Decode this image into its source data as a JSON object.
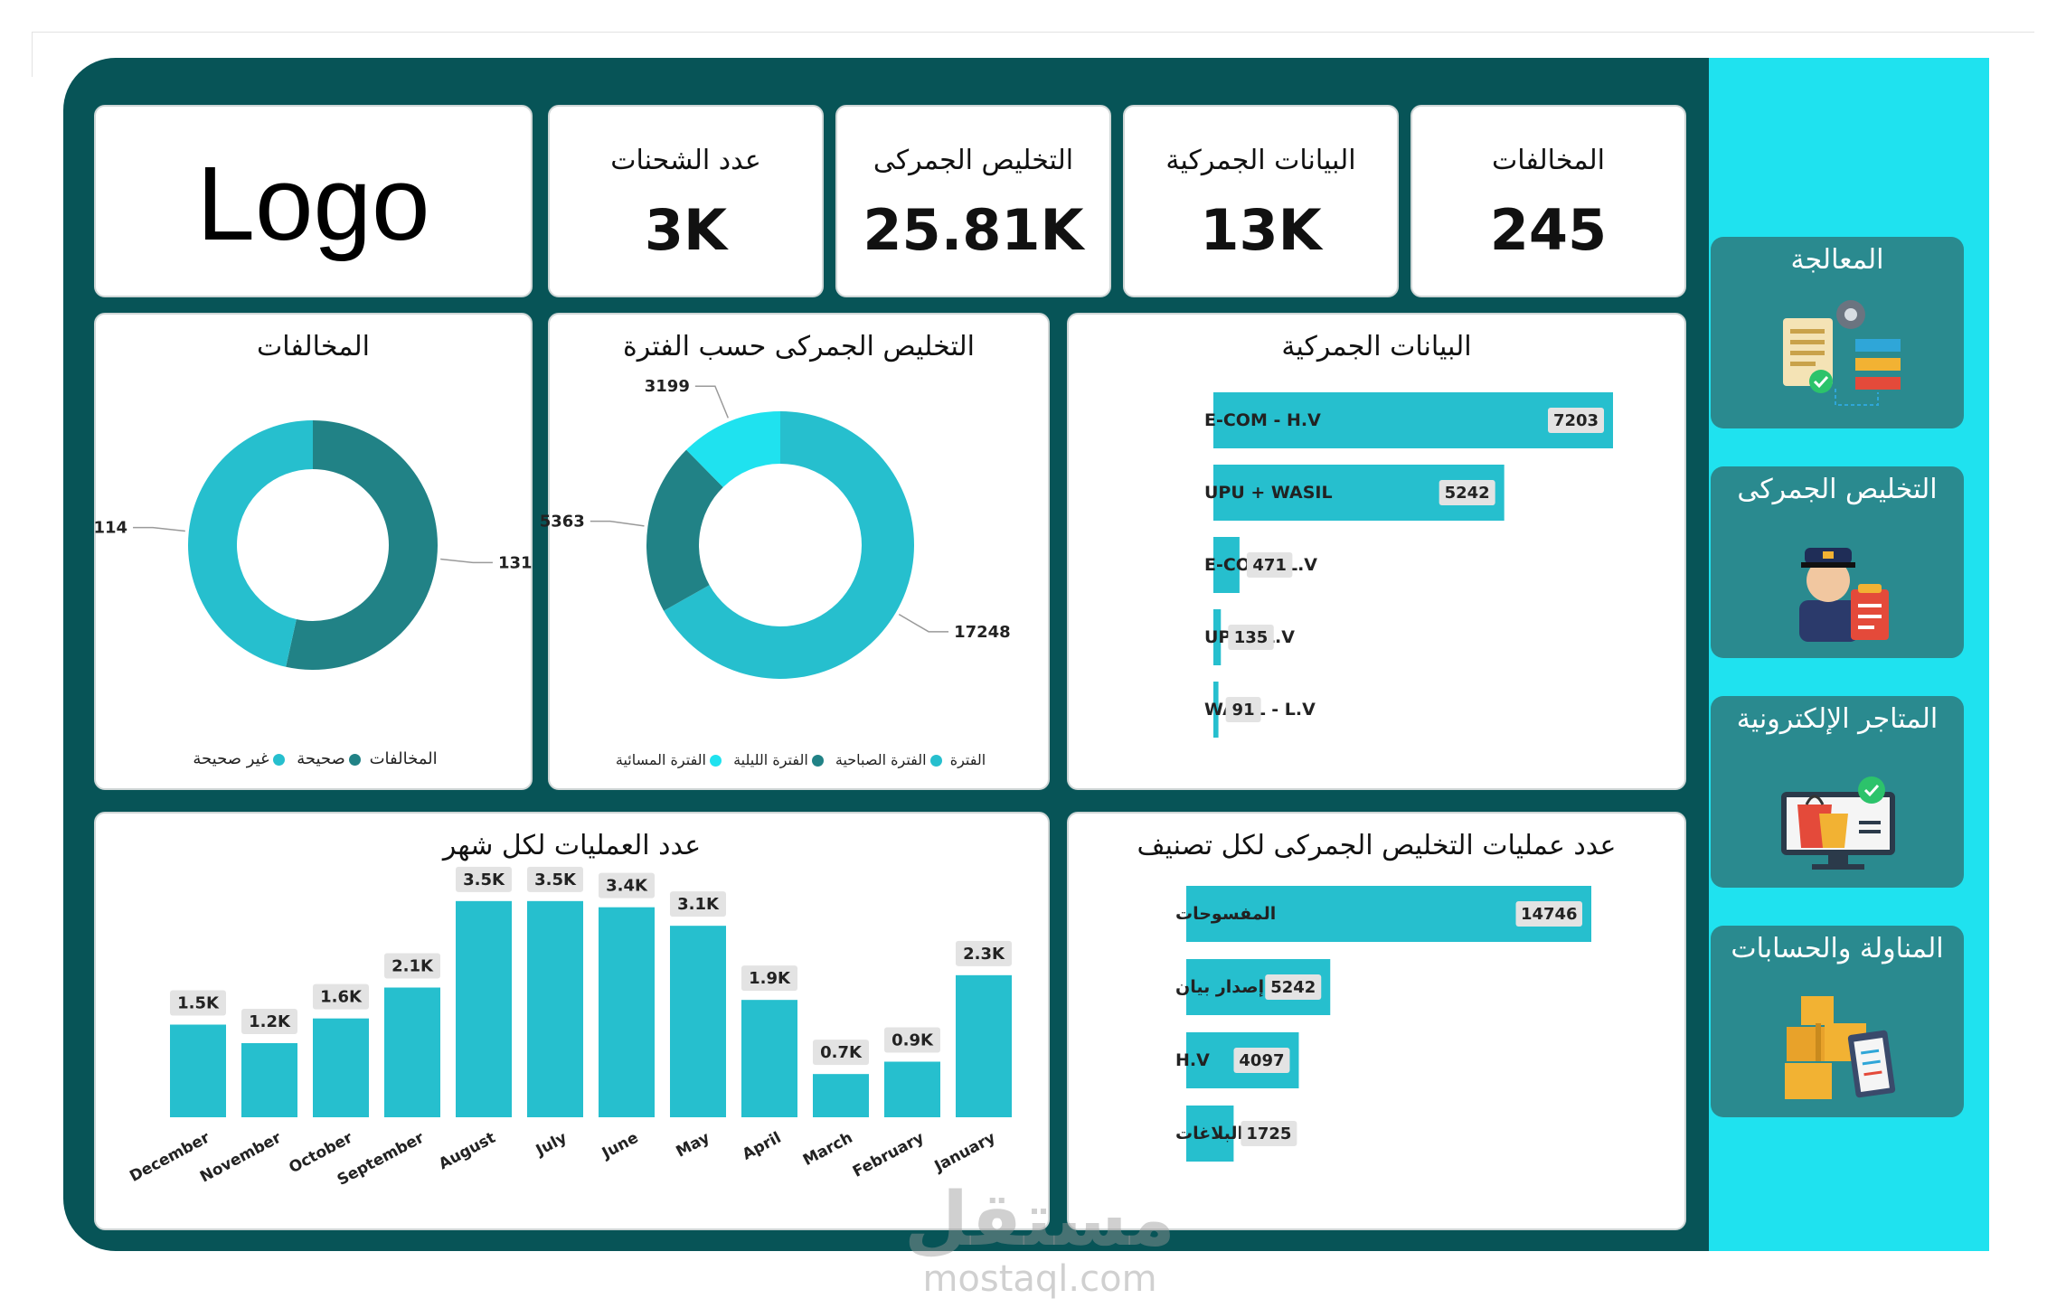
{
  "logo": "Logo",
  "kpis": [
    {
      "title": "المخالفات",
      "value": "245"
    },
    {
      "title": "البيانات الجمركية",
      "value": "13K"
    },
    {
      "title": "التخليص الجمركى",
      "value": "25.81K"
    },
    {
      "title": "عدد الشحنات",
      "value": "3K"
    }
  ],
  "sidebar": [
    {
      "label": "المعالجة",
      "icon": "processing-icon"
    },
    {
      "label": "التخليص الجمركى",
      "icon": "customs-officer-icon"
    },
    {
      "label": "المتاجر الإلكترونية",
      "icon": "e-store-icon"
    },
    {
      "label": "المناولة والحسابات",
      "icon": "boxes-checklist-icon"
    }
  ],
  "colors": {
    "dark": "#075457",
    "teal": "#26bfce",
    "darkTeal": "#218286",
    "cyan": "#1fe2ef",
    "label_bg": "#e3e3e3"
  },
  "watermark": {
    "ar": "مستقل",
    "en": "mostaql.com"
  },
  "chart_data": [
    {
      "id": "violations",
      "type": "pie",
      "variant": "donut",
      "title": "المخالفات",
      "legend_title": "المخالفات",
      "slices": [
        {
          "label": "صحيحة",
          "value": 131,
          "label_text": "131",
          "color": "#218286"
        },
        {
          "label": "غير صحيحة",
          "value": 114,
          "label_text": "114",
          "color": "#26bfce"
        }
      ]
    },
    {
      "id": "clearance-period",
      "type": "pie",
      "variant": "donut",
      "title": "التخليص الجمركى حسب الفترة",
      "legend_title": "الفترة",
      "slices": [
        {
          "label": "الفترة الصباحية",
          "value": 17248,
          "label_text": "17248",
          "color": "#26bfce"
        },
        {
          "label": "الفترة الليلية",
          "value": 5363,
          "label_text": "5363",
          "color": "#218286"
        },
        {
          "label": "الفترة المسائية",
          "value": 3199,
          "label_text": "3199",
          "color": "#1fe2ef"
        }
      ]
    },
    {
      "id": "customs-data",
      "type": "bar",
      "orientation": "horizontal",
      "title": "البيانات الجمركية",
      "categories": [
        "E-COM - H.V",
        "UPU + WASIL",
        "E-COM - L.V",
        "UPU - L.V",
        "WASIL - L.V"
      ],
      "values": [
        7203,
        5242,
        471,
        135,
        91
      ],
      "value_labels": [
        "7203",
        "5242",
        "471",
        "135",
        "91"
      ],
      "xlim": [
        0,
        7203
      ]
    },
    {
      "id": "monthly-ops",
      "type": "bar",
      "title": "عدد العمليات لكل شهر",
      "categories": [
        "December",
        "November",
        "October",
        "September",
        "August",
        "July",
        "June",
        "May",
        "April",
        "March",
        "February",
        "January"
      ],
      "values": [
        1.5,
        1.2,
        1.6,
        2.1,
        3.5,
        3.5,
        3.4,
        3.1,
        1.9,
        0.7,
        0.9,
        2.3
      ],
      "value_labels": [
        "1.5K",
        "1.2K",
        "1.6K",
        "2.1K",
        "3.5K",
        "3.5K",
        "3.4K",
        "3.1K",
        "1.9K",
        "0.7K",
        "0.9K",
        "2.3K"
      ],
      "ylim": [
        0,
        3.6
      ]
    },
    {
      "id": "clearance-category",
      "type": "bar",
      "orientation": "horizontal",
      "title": "عدد عمليات التخليص الجمركى لكل تصنيف",
      "categories": [
        "المفسوحات",
        "إصدار بيان",
        "H.V",
        "البلاغات"
      ],
      "values": [
        14746,
        5242,
        4097,
        1725
      ],
      "value_labels": [
        "14746",
        "5242",
        "4097",
        "1725"
      ],
      "xlim": [
        0,
        14746
      ]
    }
  ]
}
